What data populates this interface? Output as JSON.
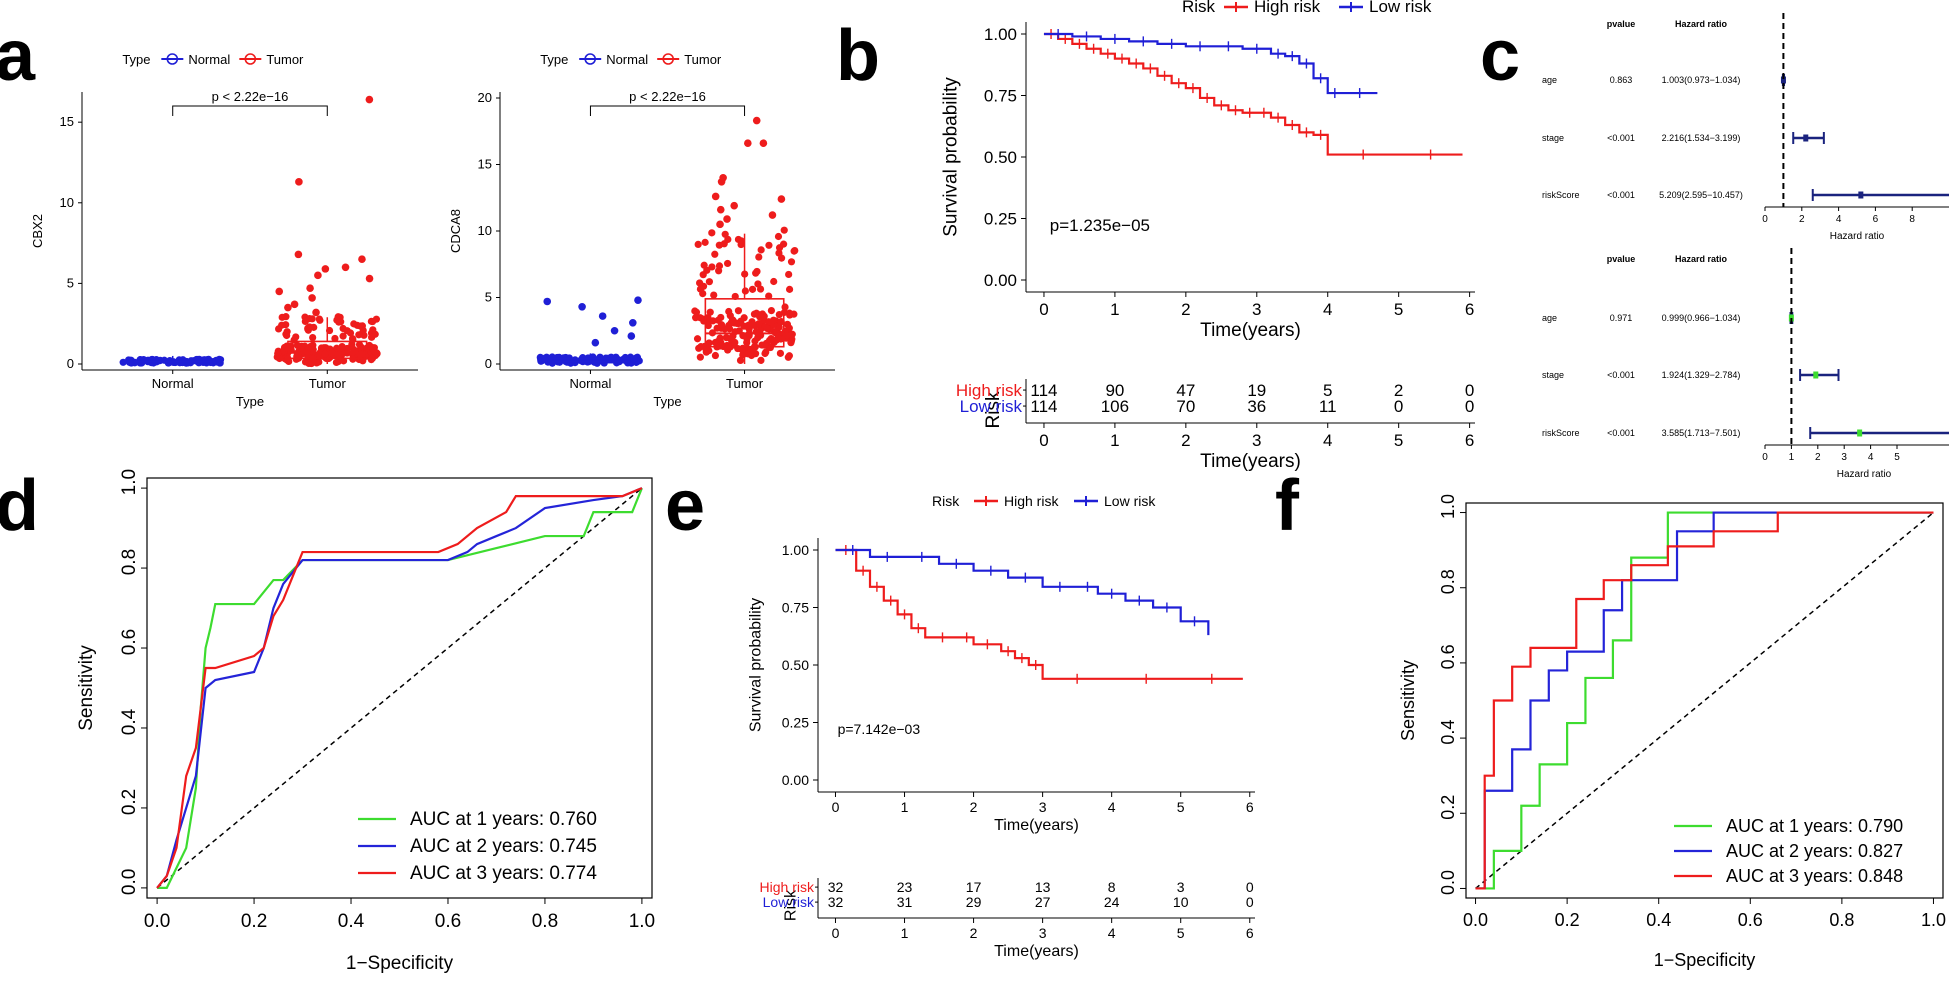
{
  "colors": {
    "normal": "#1f1fd6",
    "tumor": "#ee1c1c",
    "high": "#ee1c1c",
    "low": "#1f1fd6",
    "green": "#3ddc2f",
    "navy": "#1a237e",
    "black": "#000000"
  },
  "panel_labels": {
    "a": "a",
    "b": "b",
    "c": "c",
    "d": "d",
    "e": "e",
    "f": "f"
  },
  "chart_data": [
    {
      "id": "a1",
      "type": "box",
      "title": "",
      "legend_title": "Type",
      "legend": [
        "Normal",
        "Tumor"
      ],
      "categories": [
        "Normal",
        "Tumor"
      ],
      "xlabel": "Type",
      "ylabel": "CBX2",
      "ylim": [
        0,
        16.5
      ],
      "yticks": [
        0,
        5,
        10,
        15
      ],
      "pvalue": "p < 2.22e−16",
      "boxes": [
        {
          "group": "Normal",
          "q1": 0.1,
          "median": 0.15,
          "q3": 0.25,
          "whisker_low": 0.0,
          "whisker_high": 0.5
        },
        {
          "group": "Tumor",
          "q1": 0.35,
          "median": 0.7,
          "q3": 1.4,
          "whisker_low": 0.0,
          "whisker_high": 2.9
        }
      ],
      "outliers_tumor": [
        16.4,
        11.3,
        6.8,
        6.5,
        6.0,
        5.9,
        5.5,
        5.3,
        4.7,
        4.5,
        4.1,
        3.7,
        3.5,
        3.2
      ]
    },
    {
      "id": "a2",
      "type": "box",
      "title": "",
      "legend_title": "Type",
      "legend": [
        "Normal",
        "Tumor"
      ],
      "categories": [
        "Normal",
        "Tumor"
      ],
      "xlabel": "Type",
      "ylabel": "CDCA8",
      "ylim": [
        0,
        20
      ],
      "yticks": [
        0,
        5,
        10,
        15,
        20
      ],
      "pvalue": "p < 2.22e−16",
      "boxes": [
        {
          "group": "Normal",
          "q1": 0.1,
          "median": 0.2,
          "q3": 0.4,
          "whisker_low": 0.0,
          "whisker_high": 0.8
        },
        {
          "group": "Tumor",
          "q1": 1.3,
          "median": 2.3,
          "q3": 4.9,
          "whisker_low": 0.0,
          "whisker_high": 9.8
        }
      ],
      "outliers_normal": [
        4.8,
        4.7,
        4.3,
        3.6,
        3.1,
        2.5,
        2.1,
        1.6
      ],
      "outliers_tumor": [
        18.3,
        16.6,
        16.6,
        14.0,
        13.7,
        12.6,
        12.4,
        11.9,
        11.6,
        11.2,
        10.9,
        10.5
      ]
    },
    {
      "id": "b",
      "type": "line",
      "title": "",
      "legend_title": "Risk",
      "legend": [
        "High risk",
        "Low risk"
      ],
      "xlabel": "Time(years)",
      "ylabel": "Survival probability",
      "xlim": [
        0,
        6
      ],
      "ylim": [
        0,
        1
      ],
      "xticks": [
        0,
        1,
        2,
        3,
        4,
        5,
        6
      ],
      "yticks": [
        "0.00",
        "0.25",
        "0.50",
        "0.75",
        "1.00"
      ],
      "pvalue": "p=1.235e−05",
      "series": [
        {
          "name": "High risk",
          "x": [
            0,
            0.2,
            0.4,
            0.6,
            0.8,
            1.0,
            1.2,
            1.4,
            1.6,
            1.8,
            2.0,
            2.2,
            2.4,
            2.6,
            2.8,
            3.0,
            3.2,
            3.4,
            3.6,
            3.8,
            4.0,
            5.0,
            5.9
          ],
          "y": [
            1.0,
            0.98,
            0.96,
            0.94,
            0.92,
            0.9,
            0.88,
            0.86,
            0.83,
            0.8,
            0.78,
            0.74,
            0.71,
            0.69,
            0.68,
            0.68,
            0.66,
            0.63,
            0.6,
            0.59,
            0.51,
            0.51,
            0.51
          ]
        },
        {
          "name": "Low risk",
          "x": [
            0,
            0.4,
            0.8,
            1.2,
            1.6,
            2.0,
            2.4,
            2.8,
            3.2,
            3.4,
            3.6,
            3.8,
            4.0,
            4.2,
            4.7
          ],
          "y": [
            1.0,
            0.99,
            0.98,
            0.97,
            0.96,
            0.95,
            0.95,
            0.94,
            0.92,
            0.91,
            0.88,
            0.82,
            0.76,
            0.76,
            0.76
          ]
        }
      ],
      "risk_table": {
        "title": "Risk",
        "xlabel": "Time(years)",
        "rows": [
          {
            "label": "High risk",
            "counts": [
              "114",
              "90",
              "47",
              "19",
              "5",
              "2",
              "0"
            ]
          },
          {
            "label": "Low risk",
            "counts": [
              "114",
              "106",
              "70",
              "36",
              "11",
              "0",
              "0"
            ]
          }
        ]
      }
    },
    {
      "id": "c1",
      "type": "forest",
      "title": "",
      "headers": {
        "pvalue": "pvalue",
        "hr": "Hazard ratio"
      },
      "xlabel": "Hazard ratio",
      "xlim": [
        0,
        10
      ],
      "xticks": [
        0,
        2,
        4,
        6,
        8
      ],
      "rows": [
        {
          "label": "age",
          "pvalue": "0.863",
          "hr_text": "1.003(0.973−1.034)",
          "hr": 1.003,
          "low": 0.973,
          "high": 1.034
        },
        {
          "label": "stage",
          "pvalue": "<0.001",
          "hr_text": "2.216(1.534−3.199)",
          "hr": 2.216,
          "low": 1.534,
          "high": 3.199
        },
        {
          "label": "riskScore",
          "pvalue": "<0.001",
          "hr_text": "5.209(2.595−10.457)",
          "hr": 5.209,
          "low": 2.595,
          "high": 10.457
        }
      ]
    },
    {
      "id": "c2",
      "type": "forest",
      "title": "",
      "headers": {
        "pvalue": "pvalue",
        "hr": "Hazard ratio"
      },
      "xlabel": "Hazard ratio",
      "xlim": [
        0,
        7.5
      ],
      "xticks": [
        0,
        1,
        2,
        3,
        4,
        5
      ],
      "rows": [
        {
          "label": "age",
          "pvalue": "0.971",
          "hr_text": "0.999(0.966−1.034)",
          "hr": 0.999,
          "low": 0.966,
          "high": 1.034
        },
        {
          "label": "stage",
          "pvalue": "<0.001",
          "hr_text": "1.924(1.329−2.784)",
          "hr": 1.924,
          "low": 1.329,
          "high": 2.784
        },
        {
          "label": "riskScore",
          "pvalue": "<0.001",
          "hr_text": "3.585(1.713−7.501)",
          "hr": 3.585,
          "low": 1.713,
          "high": 7.501
        }
      ]
    },
    {
      "id": "d",
      "type": "line",
      "title": "",
      "xlabel": "1−Specificity",
      "ylabel": "Sensitivity",
      "xlim": [
        0,
        1
      ],
      "ylim": [
        0,
        1
      ],
      "xticks": [
        "0.0",
        "0.2",
        "0.4",
        "0.6",
        "0.8",
        "1.0"
      ],
      "yticks": [
        "0.0",
        "0.2",
        "0.4",
        "0.6",
        "0.8",
        "1.0"
      ],
      "series": [
        {
          "name": "AUC at 1 years: 0.760",
          "x": [
            0,
            0.02,
            0.04,
            0.06,
            0.08,
            0.09,
            0.1,
            0.11,
            0.12,
            0.14,
            0.2,
            0.24,
            0.26,
            0.3,
            0.4,
            0.6,
            0.7,
            0.8,
            0.88,
            0.9,
            0.96,
            0.98,
            1.0
          ],
          "y": [
            0,
            0,
            0.05,
            0.1,
            0.25,
            0.45,
            0.6,
            0.65,
            0.71,
            0.71,
            0.71,
            0.77,
            0.77,
            0.82,
            0.82,
            0.82,
            0.85,
            0.88,
            0.88,
            0.94,
            0.94,
            0.94,
            1.0
          ]
        },
        {
          "name": "AUC at 2 years: 0.745",
          "x": [
            0,
            0.02,
            0.04,
            0.06,
            0.08,
            0.1,
            0.12,
            0.2,
            0.22,
            0.24,
            0.26,
            0.3,
            0.4,
            0.6,
            0.64,
            0.66,
            0.7,
            0.74,
            0.8,
            0.9,
            0.96,
            1.0
          ],
          "y": [
            0,
            0.03,
            0.12,
            0.2,
            0.28,
            0.5,
            0.52,
            0.54,
            0.6,
            0.7,
            0.76,
            0.82,
            0.82,
            0.82,
            0.84,
            0.86,
            0.88,
            0.9,
            0.95,
            0.97,
            0.98,
            1.0
          ]
        },
        {
          "name": "AUC at 3 years: 0.774",
          "x": [
            0,
            0.02,
            0.04,
            0.06,
            0.08,
            0.1,
            0.12,
            0.2,
            0.22,
            0.24,
            0.26,
            0.28,
            0.3,
            0.4,
            0.5,
            0.58,
            0.62,
            0.66,
            0.72,
            0.74,
            0.8,
            0.9,
            0.96,
            1.0
          ],
          "y": [
            0,
            0.03,
            0.1,
            0.28,
            0.35,
            0.55,
            0.55,
            0.58,
            0.6,
            0.68,
            0.72,
            0.78,
            0.84,
            0.84,
            0.84,
            0.84,
            0.86,
            0.9,
            0.94,
            0.98,
            0.98,
            0.98,
            0.98,
            1.0
          ]
        }
      ]
    },
    {
      "id": "e",
      "type": "line",
      "title": "",
      "legend_title": "Risk",
      "legend": [
        "High risk",
        "Low risk"
      ],
      "xlabel": "Time(years)",
      "ylabel": "Survival probability",
      "xlim": [
        0,
        6
      ],
      "ylim": [
        0,
        1
      ],
      "xticks": [
        0,
        1,
        2,
        3,
        4,
        5,
        6
      ],
      "yticks": [
        "0.00",
        "0.25",
        "0.50",
        "0.75",
        "1.00"
      ],
      "pvalue": "p=7.142e−03",
      "series": [
        {
          "name": "High risk",
          "x": [
            0,
            0.3,
            0.5,
            0.7,
            0.9,
            1.1,
            1.3,
            1.8,
            2.0,
            2.4,
            2.6,
            2.8,
            3.0,
            4.0,
            5.0,
            5.9
          ],
          "y": [
            1.0,
            0.91,
            0.84,
            0.78,
            0.72,
            0.66,
            0.62,
            0.62,
            0.59,
            0.56,
            0.53,
            0.5,
            0.44,
            0.44,
            0.44,
            0.44
          ]
        },
        {
          "name": "Low risk",
          "x": [
            0,
            0.5,
            1.0,
            1.5,
            2.0,
            2.5,
            3.0,
            3.5,
            3.8,
            4.2,
            4.6,
            5.0,
            5.4
          ],
          "y": [
            1.0,
            0.97,
            0.97,
            0.94,
            0.91,
            0.88,
            0.84,
            0.84,
            0.81,
            0.78,
            0.75,
            0.69,
            0.63
          ]
        }
      ],
      "risk_table": {
        "title": "Risk",
        "xlabel": "Time(years)",
        "rows": [
          {
            "label": "High risk",
            "counts": [
              "32",
              "23",
              "17",
              "13",
              "8",
              "3",
              "0"
            ]
          },
          {
            "label": "Low risk",
            "counts": [
              "32",
              "31",
              "29",
              "27",
              "24",
              "10",
              "0"
            ]
          }
        ]
      }
    },
    {
      "id": "f",
      "type": "line",
      "title": "",
      "xlabel": "1−Specificity",
      "ylabel": "Sensitivity",
      "xlim": [
        0,
        1
      ],
      "ylim": [
        0,
        1
      ],
      "xticks": [
        "0.0",
        "0.2",
        "0.4",
        "0.6",
        "0.8",
        "1.0"
      ],
      "yticks": [
        "0.0",
        "0.2",
        "0.4",
        "0.6",
        "0.8",
        "1.0"
      ],
      "series": [
        {
          "name": "AUC at 1 years: 0.790",
          "x": [
            0,
            0.04,
            0.04,
            0.1,
            0.1,
            0.14,
            0.14,
            0.2,
            0.2,
            0.24,
            0.24,
            0.3,
            0.3,
            0.34,
            0.34,
            0.42,
            0.42,
            0.5,
            0.5,
            1.0
          ],
          "y": [
            0,
            0,
            0.1,
            0.1,
            0.22,
            0.22,
            0.33,
            0.33,
            0.44,
            0.44,
            0.56,
            0.56,
            0.66,
            0.66,
            0.88,
            0.88,
            1.0,
            1.0,
            1.0,
            1.0
          ]
        },
        {
          "name": "AUC at 2 years: 0.827",
          "x": [
            0,
            0.02,
            0.02,
            0.08,
            0.08,
            0.12,
            0.12,
            0.16,
            0.16,
            0.2,
            0.2,
            0.28,
            0.28,
            0.32,
            0.32,
            0.44,
            0.44,
            0.52,
            0.52,
            1.0
          ],
          "y": [
            0,
            0,
            0.26,
            0.26,
            0.37,
            0.37,
            0.5,
            0.5,
            0.58,
            0.58,
            0.63,
            0.63,
            0.74,
            0.74,
            0.82,
            0.82,
            0.95,
            0.95,
            1.0,
            1.0
          ]
        },
        {
          "name": "AUC at 3 years: 0.848",
          "x": [
            0,
            0.02,
            0.02,
            0.04,
            0.04,
            0.08,
            0.08,
            0.12,
            0.12,
            0.22,
            0.22,
            0.28,
            0.28,
            0.34,
            0.34,
            0.42,
            0.42,
            0.52,
            0.52,
            0.66,
            0.66,
            1.0
          ],
          "y": [
            0,
            0,
            0.3,
            0.3,
            0.5,
            0.5,
            0.59,
            0.59,
            0.64,
            0.64,
            0.77,
            0.77,
            0.82,
            0.82,
            0.86,
            0.86,
            0.91,
            0.91,
            0.95,
            0.95,
            1.0,
            1.0
          ]
        }
      ]
    }
  ]
}
